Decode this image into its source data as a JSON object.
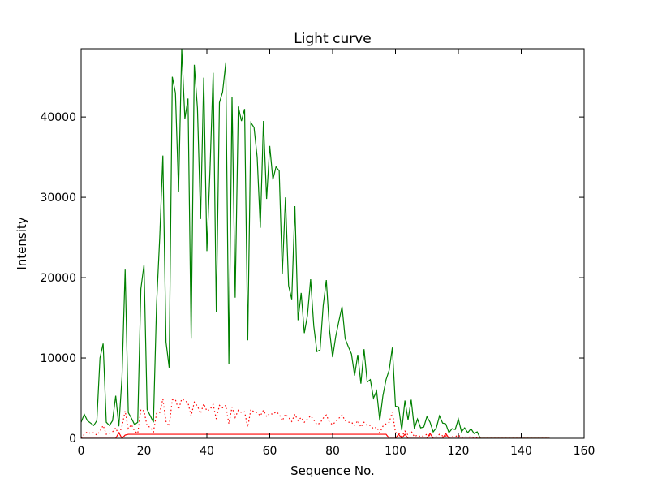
{
  "chart_data": {
    "type": "line",
    "title": "Light curve",
    "xlabel": "Sequence No.",
    "ylabel": "Intensity",
    "xlim": [
      0,
      160
    ],
    "ylim": [
      0,
      48500
    ],
    "x_ticks": [
      0,
      20,
      40,
      60,
      80,
      100,
      120,
      140,
      160
    ],
    "y_ticks": [
      0,
      10000,
      20000,
      30000,
      40000
    ],
    "grid": false,
    "legend": "none",
    "series": [
      {
        "color": "#008000",
        "style": "solid",
        "x": [
          0,
          1,
          2,
          3,
          4,
          5,
          6,
          7,
          8,
          9,
          10,
          11,
          12,
          13,
          14,
          15,
          16,
          17,
          18,
          19,
          20,
          21,
          22,
          23,
          24,
          25,
          26,
          27,
          28,
          29,
          30,
          31,
          32,
          33,
          34,
          35,
          36,
          37,
          38,
          39,
          40,
          41,
          42,
          43,
          44,
          45,
          46,
          47,
          48,
          49,
          50,
          51,
          52,
          53,
          54,
          55,
          56,
          57,
          58,
          59,
          60,
          61,
          62,
          63,
          64,
          65,
          66,
          67,
          68,
          69,
          70,
          71,
          72,
          73,
          74,
          75,
          76,
          77,
          78,
          79,
          80,
          81,
          82,
          83,
          84,
          85,
          86,
          87,
          88,
          89,
          90,
          91,
          92,
          93,
          94,
          95,
          96,
          97,
          98,
          99,
          100,
          101,
          102,
          103,
          104,
          105,
          106,
          107,
          108,
          109,
          110,
          111,
          112,
          113,
          114,
          115,
          116,
          117,
          118,
          119,
          120,
          121,
          122,
          123,
          124,
          125,
          126,
          127,
          128,
          129,
          130,
          131,
          132,
          133,
          134,
          135,
          136,
          137,
          138,
          139,
          140,
          141,
          142,
          143,
          144,
          145,
          146,
          147,
          148,
          149
        ],
        "values": [
          2000,
          3000,
          2200,
          1900,
          1600,
          2200,
          10000,
          11800,
          2000,
          1600,
          2200,
          5300,
          1500,
          7600,
          21000,
          3200,
          2500,
          1700,
          2000,
          18600,
          21600,
          3600,
          2800,
          2000,
          16700,
          25000,
          35200,
          12000,
          8800,
          45000,
          43000,
          30700,
          48500,
          39800,
          42300,
          12400,
          46500,
          41100,
          27300,
          44900,
          23300,
          33500,
          45500,
          15700,
          41800,
          43100,
          46700,
          9300,
          42500,
          17500,
          41300,
          39500,
          41000,
          12200,
          39300,
          38700,
          35000,
          26200,
          39500,
          29800,
          36400,
          32200,
          33800,
          33300,
          20500,
          30000,
          19000,
          17300,
          28900,
          14700,
          18100,
          13100,
          15300,
          19800,
          14000,
          10800,
          11000,
          16500,
          19700,
          13500,
          10100,
          12700,
          14600,
          16400,
          12400,
          11400,
          10500,
          7800,
          10400,
          6800,
          11100,
          7000,
          7300,
          5000,
          5900,
          2200,
          5300,
          7300,
          8500,
          11300,
          4000,
          3900,
          1000,
          4700,
          2300,
          4800,
          1200,
          2400,
          1300,
          1400,
          2700,
          2000,
          800,
          1300,
          2800,
          1900,
          1800,
          700,
          1200,
          1100,
          2400,
          800,
          1300,
          700,
          1200,
          600,
          800,
          0,
          0,
          0,
          0,
          0,
          0,
          0,
          0,
          0,
          0,
          0,
          0,
          0,
          0,
          0,
          0,
          0,
          0,
          0,
          0,
          0,
          0,
          0
        ]
      },
      {
        "color": "#ff0000",
        "style": "dotted",
        "x": [
          0,
          1,
          2,
          3,
          4,
          5,
          6,
          7,
          8,
          9,
          10,
          11,
          12,
          13,
          14,
          15,
          16,
          17,
          18,
          19,
          20,
          21,
          22,
          23,
          24,
          25,
          26,
          27,
          28,
          29,
          30,
          31,
          32,
          33,
          34,
          35,
          36,
          37,
          38,
          39,
          40,
          41,
          42,
          43,
          44,
          45,
          46,
          47,
          48,
          49,
          50,
          51,
          52,
          53,
          54,
          55,
          56,
          57,
          58,
          59,
          60,
          61,
          62,
          63,
          64,
          65,
          66,
          67,
          68,
          69,
          70,
          71,
          72,
          73,
          74,
          75,
          76,
          77,
          78,
          79,
          80,
          81,
          82,
          83,
          84,
          85,
          86,
          87,
          88,
          89,
          90,
          91,
          92,
          93,
          94,
          95,
          96,
          97,
          98,
          99,
          100,
          101,
          102,
          103,
          104,
          105,
          106,
          107,
          108,
          109,
          110,
          111,
          112,
          113,
          114,
          115,
          116,
          117,
          118,
          119,
          120,
          121,
          122,
          123,
          124,
          125,
          126,
          127,
          128,
          129,
          130,
          131,
          132,
          133,
          134,
          135,
          136,
          137,
          138,
          139,
          140,
          141,
          142,
          143,
          144,
          145,
          146,
          147,
          148,
          149
        ],
        "values": [
          0,
          500,
          800,
          600,
          700,
          400,
          900,
          1600,
          500,
          600,
          800,
          1300,
          400,
          1500,
          3400,
          1200,
          1700,
          900,
          600,
          3600,
          3400,
          1500,
          1400,
          800,
          3100,
          3200,
          4900,
          2100,
          1500,
          4800,
          4800,
          3600,
          4900,
          4700,
          4400,
          2800,
          4500,
          4000,
          3100,
          4300,
          3400,
          3600,
          4200,
          2400,
          4100,
          3800,
          4100,
          1800,
          3900,
          2600,
          3500,
          3200,
          3300,
          1400,
          3600,
          3300,
          3200,
          2800,
          3500,
          2700,
          3100,
          3000,
          3300,
          3000,
          2200,
          3000,
          2600,
          2100,
          3000,
          2200,
          2600,
          2000,
          2400,
          2800,
          2300,
          1700,
          1900,
          2500,
          2900,
          2000,
          1700,
          2100,
          2500,
          2900,
          2200,
          2000,
          2000,
          1600,
          2200,
          1400,
          2000,
          1600,
          1600,
          1200,
          1400,
          700,
          1500,
          1800,
          2000,
          3300,
          700,
          700,
          200,
          900,
          400,
          900,
          200,
          400,
          200,
          300,
          500,
          300,
          100,
          200,
          500,
          300,
          300,
          100,
          200,
          200,
          400,
          100,
          200,
          100,
          200,
          100,
          100,
          0,
          0,
          0,
          0,
          0,
          0,
          0,
          0,
          0,
          0,
          0,
          0,
          0,
          0,
          0,
          0,
          0,
          0,
          0,
          0,
          0,
          0,
          0
        ]
      },
      {
        "color": "#ff0000",
        "style": "solid",
        "x": [
          0,
          1,
          2,
          3,
          4,
          5,
          6,
          7,
          8,
          9,
          10,
          11,
          12,
          13,
          14,
          15,
          16,
          17,
          18,
          19,
          20,
          21,
          22,
          23,
          24,
          25,
          26,
          27,
          28,
          29,
          30,
          31,
          32,
          33,
          34,
          35,
          36,
          37,
          38,
          39,
          40,
          41,
          42,
          43,
          44,
          45,
          46,
          47,
          48,
          49,
          50,
          51,
          52,
          53,
          54,
          55,
          56,
          57,
          58,
          59,
          60,
          61,
          62,
          63,
          64,
          65,
          66,
          67,
          68,
          69,
          70,
          71,
          72,
          73,
          74,
          75,
          76,
          77,
          78,
          79,
          80,
          81,
          82,
          83,
          84,
          85,
          86,
          87,
          88,
          89,
          90,
          91,
          92,
          93,
          94,
          95,
          96,
          97,
          98,
          99,
          100,
          101,
          102,
          103,
          104,
          105,
          106,
          107,
          108,
          109,
          110,
          111,
          112,
          113,
          114,
          115,
          116,
          117,
          118,
          119,
          120,
          121,
          122,
          123,
          124,
          125,
          126,
          127,
          128,
          129,
          130,
          131,
          132,
          133,
          134,
          135,
          136,
          137,
          138,
          139,
          140,
          141,
          142,
          143,
          144,
          145,
          146,
          147,
          148,
          149
        ],
        "values": [
          0,
          0,
          0,
          0,
          0,
          0,
          0,
          0,
          0,
          0,
          0,
          0,
          700,
          0,
          400,
          500,
          500,
          500,
          500,
          500,
          500,
          500,
          500,
          500,
          500,
          500,
          500,
          500,
          500,
          500,
          500,
          500,
          500,
          500,
          500,
          500,
          500,
          500,
          500,
          500,
          500,
          500,
          500,
          500,
          500,
          500,
          500,
          500,
          500,
          500,
          500,
          500,
          500,
          500,
          500,
          500,
          500,
          500,
          500,
          500,
          500,
          500,
          500,
          500,
          500,
          500,
          500,
          500,
          500,
          500,
          500,
          500,
          500,
          500,
          500,
          500,
          500,
          500,
          500,
          500,
          500,
          500,
          500,
          500,
          500,
          500,
          500,
          500,
          500,
          500,
          500,
          500,
          500,
          500,
          500,
          500,
          500,
          500,
          0,
          0,
          0,
          500,
          0,
          500,
          0,
          0,
          0,
          0,
          0,
          0,
          0,
          600,
          0,
          0,
          0,
          0,
          600,
          0,
          0,
          0,
          0,
          0,
          0,
          0,
          0,
          0,
          0,
          0,
          0,
          0,
          0,
          0,
          0,
          0,
          0,
          0,
          0,
          0,
          0,
          0,
          0,
          0,
          0,
          0,
          0,
          0,
          0,
          0,
          0,
          0
        ]
      }
    ]
  }
}
